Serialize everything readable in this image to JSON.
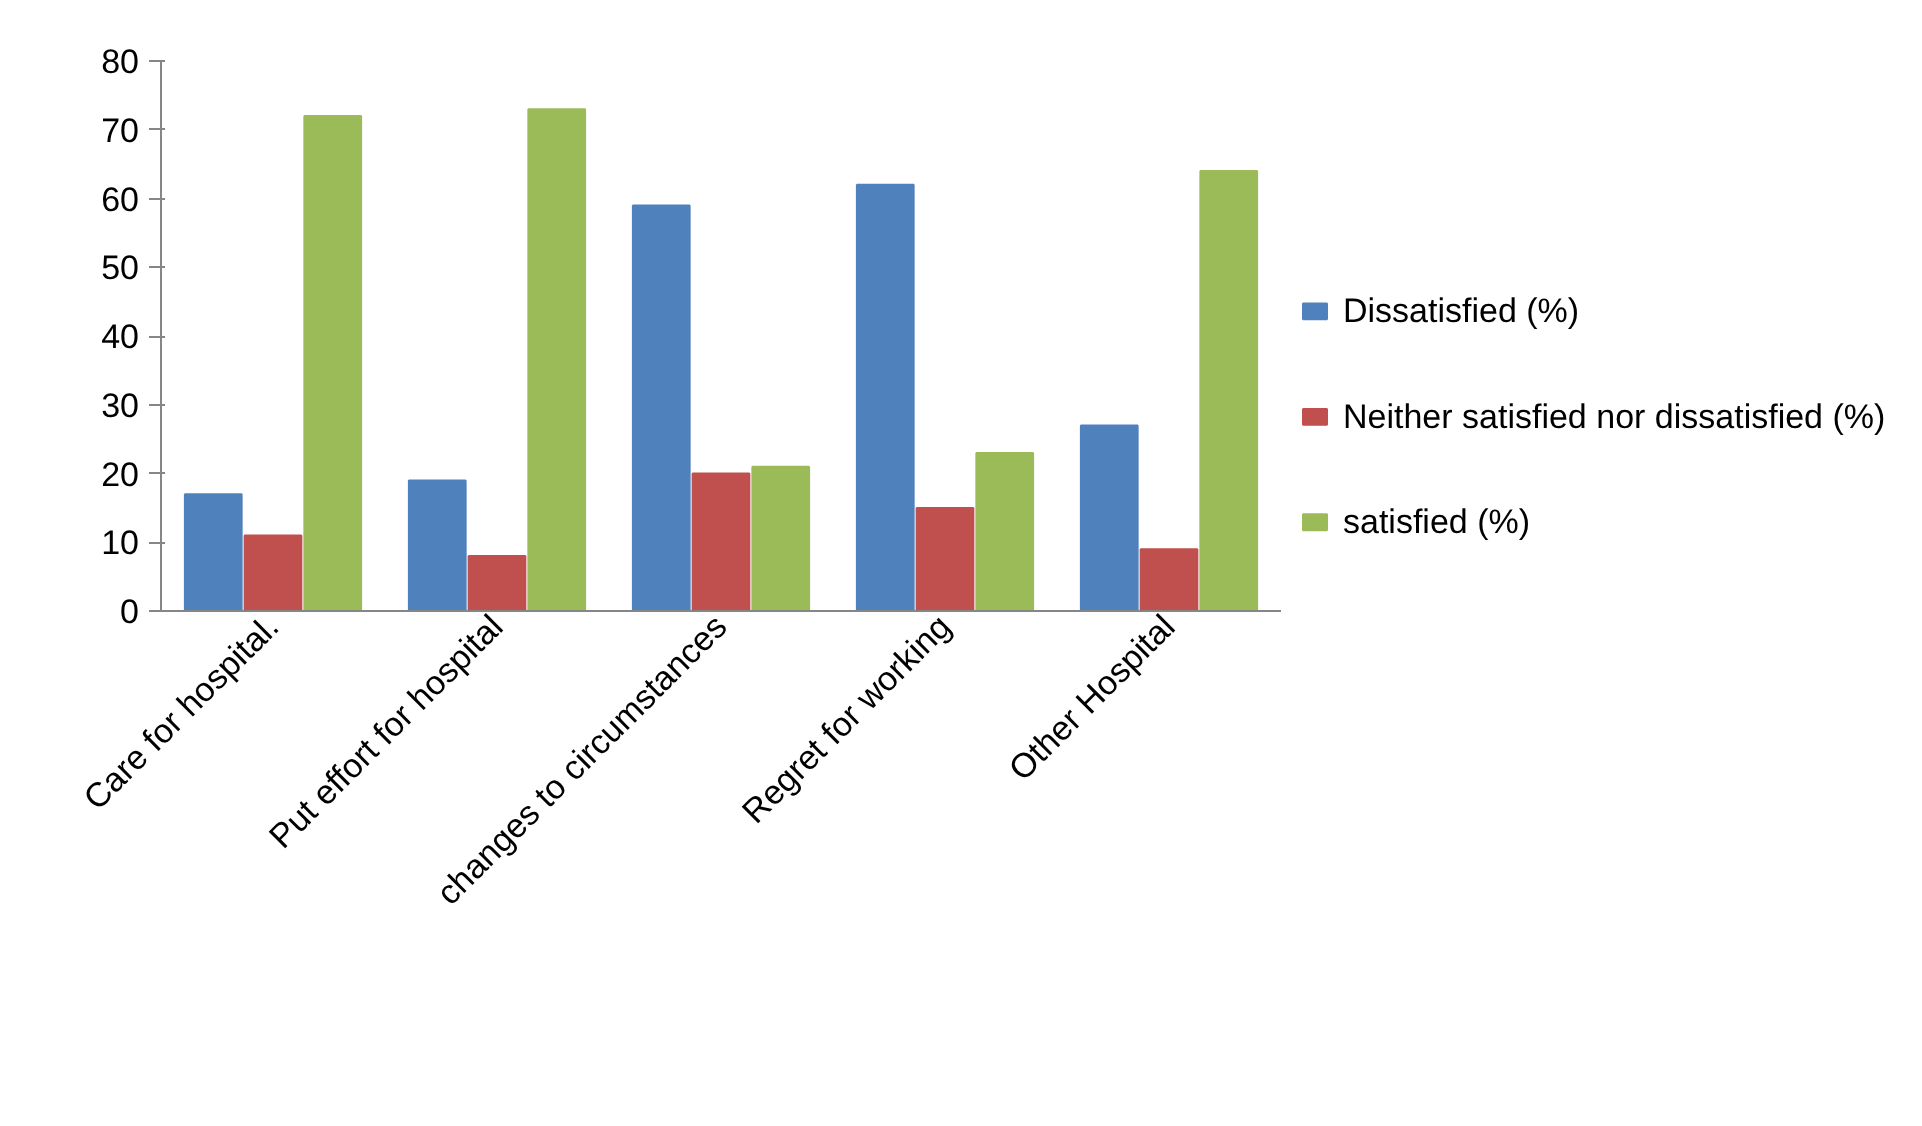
{
  "chart_data": {
    "type": "bar",
    "categories": [
      "Care for hospital.",
      "Put effort for hospital",
      "changes to circumstances",
      "Regret for working",
      "Other Hospital"
    ],
    "series": [
      {
        "name": "Dissatisfied  (%)",
        "color": "#4f81bd",
        "values": [
          17,
          19,
          59,
          62,
          27
        ]
      },
      {
        "name": "Neither satisfied nor dissatisfied (%)",
        "color": "#c0504d",
        "values": [
          11,
          8,
          20,
          15,
          9
        ]
      },
      {
        "name": " satisfied   (%)",
        "color": "#9bbb59",
        "values": [
          72,
          73,
          21,
          23,
          64
        ]
      }
    ],
    "ylim": [
      0,
      80
    ],
    "yticks": [
      0,
      10,
      20,
      30,
      40,
      50,
      60,
      70,
      80
    ],
    "grid": false,
    "legend": "right"
  }
}
